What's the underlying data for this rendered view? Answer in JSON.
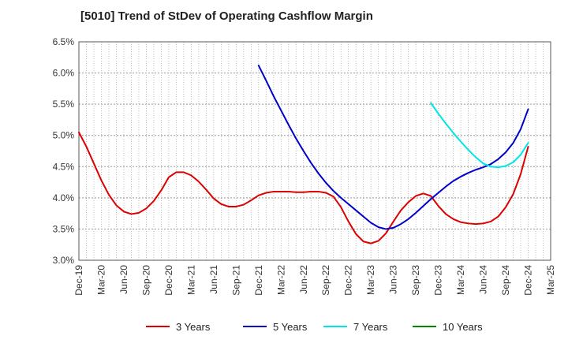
{
  "chart_data": {
    "type": "line",
    "title": "[5010]  Trend of StDev of Operating Cashflow Margin",
    "xlabel": "",
    "ylabel": "",
    "ylim": [
      3.0,
      6.5
    ],
    "y_ticks": [
      "3.0%",
      "3.5%",
      "4.0%",
      "4.5%",
      "5.0%",
      "5.5%",
      "6.0%",
      "6.5%"
    ],
    "y_tick_values": [
      3.0,
      3.5,
      4.0,
      4.5,
      5.0,
      5.5,
      6.0,
      6.5
    ],
    "x_ticks": [
      "Dec-19",
      "Mar-20",
      "Jun-20",
      "Sep-20",
      "Dec-20",
      "Mar-21",
      "Jun-21",
      "Sep-21",
      "Dec-21",
      "Mar-22",
      "Jun-22",
      "Sep-22",
      "Dec-22",
      "Mar-23",
      "Jun-23",
      "Sep-23",
      "Dec-23",
      "Mar-24",
      "Jun-24",
      "Sep-24",
      "Dec-24",
      "Mar-25"
    ],
    "grid": true,
    "legend_position": "bottom",
    "series": [
      {
        "name": "3 Years",
        "color": "#dd0000",
        "points": [
          [
            "Dec-19",
            5.05
          ],
          [
            "Jan-20",
            4.82
          ],
          [
            "Feb-20",
            4.55
          ],
          [
            "Mar-20",
            4.28
          ],
          [
            "Apr-20",
            4.05
          ],
          [
            "May-20",
            3.88
          ],
          [
            "Jun-20",
            3.78
          ],
          [
            "Jul-20",
            3.74
          ],
          [
            "Aug-20",
            3.76
          ],
          [
            "Sep-20",
            3.83
          ],
          [
            "Oct-20",
            3.95
          ],
          [
            "Nov-20",
            4.12
          ],
          [
            "Dec-20",
            4.33
          ],
          [
            "Jan-21",
            4.41
          ],
          [
            "Feb-21",
            4.41
          ],
          [
            "Mar-21",
            4.36
          ],
          [
            "Apr-21",
            4.26
          ],
          [
            "May-21",
            4.13
          ],
          [
            "Jun-21",
            3.99
          ],
          [
            "Jul-21",
            3.9
          ],
          [
            "Aug-21",
            3.86
          ],
          [
            "Sep-21",
            3.86
          ],
          [
            "Oct-21",
            3.89
          ],
          [
            "Nov-21",
            3.96
          ],
          [
            "Dec-21",
            4.04
          ],
          [
            "Jan-22",
            4.08
          ],
          [
            "Feb-22",
            4.1
          ],
          [
            "Mar-22",
            4.1
          ],
          [
            "Apr-22",
            4.1
          ],
          [
            "May-22",
            4.09
          ],
          [
            "Jun-22",
            4.09
          ],
          [
            "Jul-22",
            4.1
          ],
          [
            "Aug-22",
            4.1
          ],
          [
            "Sep-22",
            4.08
          ],
          [
            "Oct-22",
            4.02
          ],
          [
            "Nov-22",
            3.85
          ],
          [
            "Dec-22",
            3.62
          ],
          [
            "Jan-23",
            3.42
          ],
          [
            "Feb-23",
            3.3
          ],
          [
            "Mar-23",
            3.27
          ],
          [
            "Apr-23",
            3.31
          ],
          [
            "May-23",
            3.43
          ],
          [
            "Jun-23",
            3.62
          ],
          [
            "Jul-23",
            3.8
          ],
          [
            "Aug-23",
            3.93
          ],
          [
            "Sep-23",
            4.03
          ],
          [
            "Oct-23",
            4.07
          ],
          [
            "Nov-23",
            4.03
          ],
          [
            "Dec-23",
            3.87
          ],
          [
            "Jan-24",
            3.74
          ],
          [
            "Feb-24",
            3.66
          ],
          [
            "Mar-24",
            3.61
          ],
          [
            "Apr-24",
            3.59
          ],
          [
            "May-24",
            3.58
          ],
          [
            "Jun-24",
            3.59
          ],
          [
            "Jul-24",
            3.62
          ],
          [
            "Aug-24",
            3.7
          ],
          [
            "Sep-24",
            3.85
          ],
          [
            "Oct-24",
            4.06
          ],
          [
            "Nov-24",
            4.38
          ],
          [
            "Dec-24",
            4.82
          ]
        ]
      },
      {
        "name": "5 Years",
        "color": "#0000cc",
        "points": [
          [
            "Dec-21",
            6.12
          ],
          [
            "Jan-22",
            5.88
          ],
          [
            "Feb-22",
            5.63
          ],
          [
            "Mar-22",
            5.4
          ],
          [
            "Apr-22",
            5.17
          ],
          [
            "May-22",
            4.95
          ],
          [
            "Jun-22",
            4.75
          ],
          [
            "Jul-22",
            4.56
          ],
          [
            "Aug-22",
            4.39
          ],
          [
            "Sep-22",
            4.24
          ],
          [
            "Oct-22",
            4.11
          ],
          [
            "Nov-22",
            4.0
          ],
          [
            "Dec-22",
            3.9
          ],
          [
            "Jan-23",
            3.8
          ],
          [
            "Feb-23",
            3.7
          ],
          [
            "Mar-23",
            3.6
          ],
          [
            "Apr-23",
            3.53
          ],
          [
            "May-23",
            3.5
          ],
          [
            "Jun-23",
            3.52
          ],
          [
            "Jul-23",
            3.58
          ],
          [
            "Aug-23",
            3.66
          ],
          [
            "Sep-23",
            3.76
          ],
          [
            "Oct-23",
            3.87
          ],
          [
            "Nov-23",
            3.98
          ],
          [
            "Dec-23",
            4.08
          ],
          [
            "Jan-24",
            4.18
          ],
          [
            "Feb-24",
            4.27
          ],
          [
            "Mar-24",
            4.34
          ],
          [
            "Apr-24",
            4.4
          ],
          [
            "May-24",
            4.45
          ],
          [
            "Jun-24",
            4.49
          ],
          [
            "Jul-24",
            4.54
          ],
          [
            "Aug-24",
            4.62
          ],
          [
            "Sep-24",
            4.73
          ],
          [
            "Oct-24",
            4.88
          ],
          [
            "Nov-24",
            5.1
          ],
          [
            "Dec-24",
            5.42
          ]
        ]
      },
      {
        "name": "7 Years",
        "color": "#00e5e5",
        "points": [
          [
            "Nov-23",
            5.52
          ],
          [
            "Dec-23",
            5.35
          ],
          [
            "Jan-24",
            5.19
          ],
          [
            "Feb-24",
            5.04
          ],
          [
            "Mar-24",
            4.9
          ],
          [
            "Apr-24",
            4.77
          ],
          [
            "May-24",
            4.65
          ],
          [
            "Jun-24",
            4.55
          ],
          [
            "Jul-24",
            4.5
          ],
          [
            "Aug-24",
            4.49
          ],
          [
            "Sep-24",
            4.51
          ],
          [
            "Oct-24",
            4.57
          ],
          [
            "Nov-24",
            4.69
          ],
          [
            "Dec-24",
            4.88
          ]
        ]
      },
      {
        "name": "10 Years",
        "color": "#008800",
        "points": []
      }
    ]
  }
}
